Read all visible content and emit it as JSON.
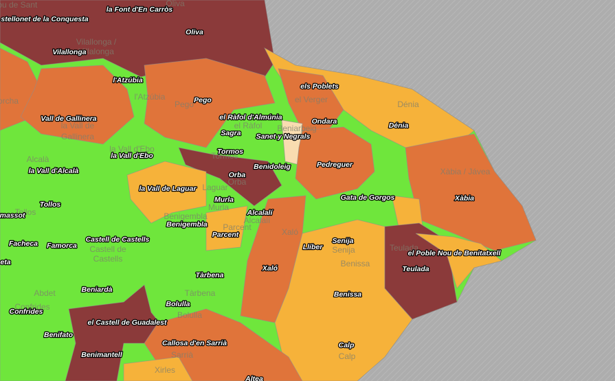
{
  "municipality_labels": [
    "la Font d'En Carròs",
    "Oliva",
    "stellonet de la Conquesta",
    "Vilallonga",
    "l'Atzúbia",
    "Pego",
    "els Poblets",
    "el Ràfol d'Almúnia",
    "Ondara",
    "Dénia",
    "Vall de Gallinera",
    "Sagra",
    "Sanet y Negrals",
    "Tormos",
    "la Vall d'Ebo",
    "Pedreguer",
    "Benidoleig",
    "la Vall d'Alcalà",
    "Orba",
    "la Vall de Laguar",
    "Gata de Gorgos",
    "Xàbia",
    "Murla",
    "Tollos",
    "Alcalalí",
    "massot",
    "Benigembla",
    "Parcent",
    "Castell de Castells",
    "Senija",
    "Facheca",
    "Famorca",
    "Llíber",
    "el Poble Nou de Benitatxell",
    "eta",
    "Teulada",
    "Xaló",
    "Tàrbena",
    "Beniardà",
    "Benissa",
    "Bolulla",
    "Confrides",
    "el Castell de Guadalest",
    "Benifato",
    "Callosa d'en Sarrià",
    "Calp",
    "Benimantell",
    "Altea"
  ],
  "basemap_labels": [
    "nou de Sant",
    "Oliva",
    "Vilallonga /",
    "Villalonga",
    "orcha",
    "l'Atzúbia",
    "Pego",
    "el Verger",
    "Dénia",
    "la Vall de",
    "Gallinera",
    "el Ràfol",
    "Beniarbeig",
    "la Vall d'Ebo",
    "Alcalà",
    "Tormos",
    "Xàbia / Jávea",
    "Orba",
    "Laguar",
    "Murla",
    "Tollos",
    "Benigembla",
    "Alcalalí",
    "Parcent",
    "Xaló",
    "Castell de",
    "Castells",
    "Senija",
    "Benissa",
    "Teulada",
    "Abdet",
    "Tàrbena",
    "Confrides",
    "Bolulla",
    "Sarrià",
    "Calp",
    "Xirles"
  ]
}
